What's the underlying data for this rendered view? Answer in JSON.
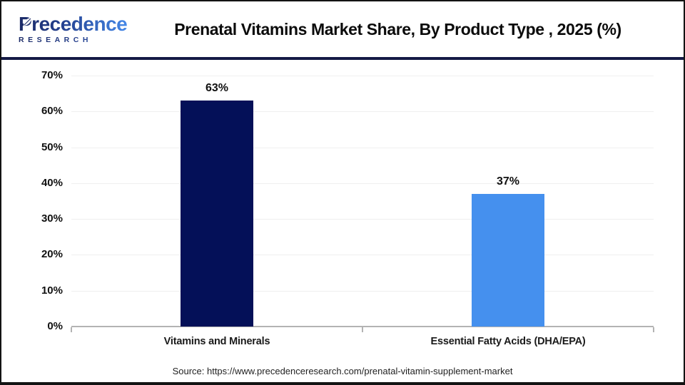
{
  "header": {
    "logo_text": "Precedence",
    "logo_subtext": "RESEARCH",
    "brand_navy": "#1b2a66",
    "brand_blue": "#4488e8",
    "title": "Prenatal Vitamins Market Share, By Product Type , 2025 (%)"
  },
  "chart_data": {
    "type": "bar",
    "title": "Prenatal Vitamins Market Share, By Product Type , 2025 (%)",
    "categories": [
      "Vitamins and Minerals",
      "Essential Fatty Acids (DHA/EPA)"
    ],
    "values": [
      63,
      37
    ],
    "value_labels": [
      "63%",
      "37%"
    ],
    "bar_colors": [
      "#041058",
      "#4590ee"
    ],
    "xlabel": "",
    "ylabel": "",
    "ylim": [
      0,
      70
    ],
    "ytick_step": 10,
    "ytick_labels": [
      "0%",
      "10%",
      "20%",
      "30%",
      "40%",
      "50%",
      "60%",
      "70%"
    ],
    "grid": true,
    "legend": "none"
  },
  "footer": {
    "source": "Source: https://www.precedenceresearch.com/prenatal-vitamin-supplement-market"
  }
}
